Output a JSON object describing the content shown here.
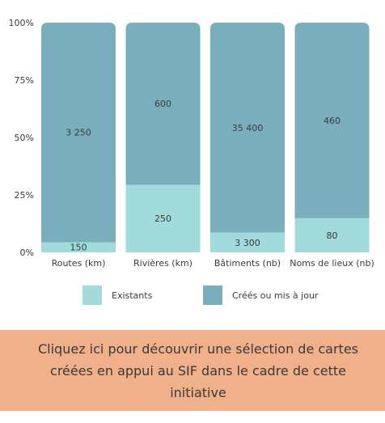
{
  "colors": {
    "existing": "#a1dbdc",
    "created": "#79aebd",
    "cta_background": "#f0b08a",
    "text": "#3a3a3a"
  },
  "chart_data": {
    "type": "bar",
    "stacked": "percent",
    "categories": [
      "Routes (km)",
      "Rivières (km)",
      "Bâtiments (nb)",
      "Noms de lieux (nb)"
    ],
    "series": [
      {
        "name": "Existants",
        "values": [
          150,
          250,
          3300,
          80
        ],
        "labels": [
          "150",
          "250",
          "3 300",
          "80"
        ]
      },
      {
        "name": "Créés ou mis à jour",
        "values": [
          3250,
          600,
          35400,
          460
        ],
        "labels": [
          "3 250",
          "600",
          "35 400",
          "460"
        ]
      }
    ],
    "yticks": [
      "0%",
      "25%",
      "50%",
      "75%",
      "100%"
    ],
    "ylim": [
      0,
      100
    ],
    "legend_position": "bottom"
  },
  "legend": {
    "existing_label": "Existants",
    "created_label": "Créés ou mis à jour"
  },
  "cta": {
    "text": "Cliquez ici pour découvrir une sélection de cartes créées en appui au SIF dans le cadre de cette initiative"
  }
}
